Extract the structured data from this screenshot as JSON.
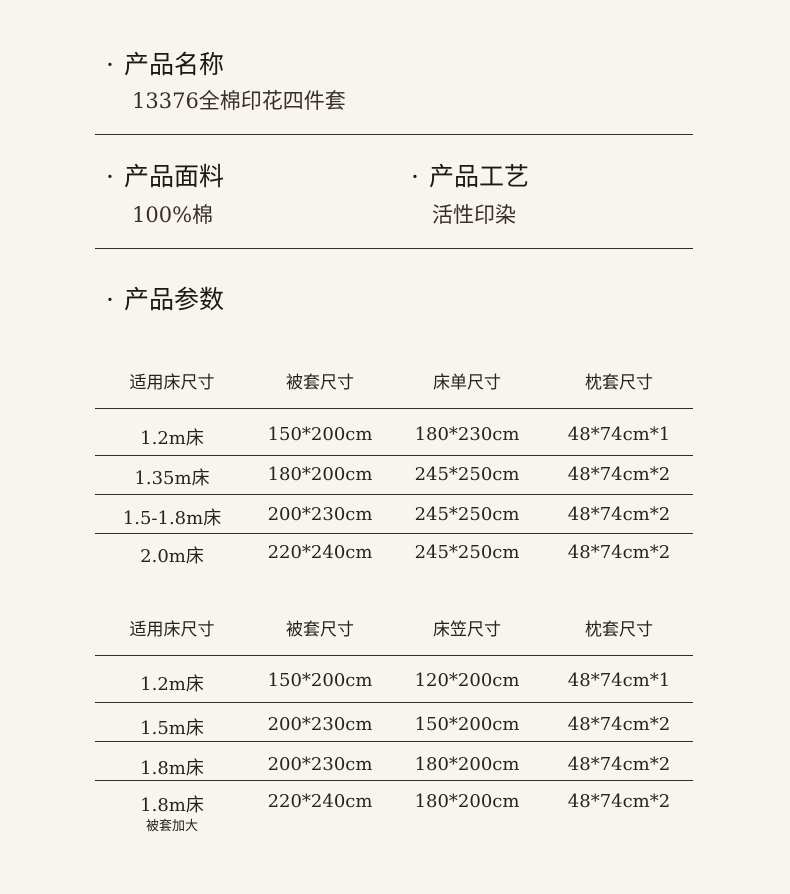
{
  "name": {
    "label": "产品名称",
    "value": "13376全棉印花四件套"
  },
  "fabric": {
    "label": "产品面料",
    "value": "100%棉"
  },
  "craft": {
    "label": "产品工艺",
    "value": "活性印染"
  },
  "params": {
    "label": "产品参数"
  },
  "bullet": "·",
  "table1": {
    "headers": [
      "适用床尺寸",
      "被套尺寸",
      "床单尺寸",
      "枕套尺寸"
    ],
    "rows": [
      [
        "1.2m床",
        "150*200cm",
        "180*230cm",
        "48*74cm*1"
      ],
      [
        "1.35m床",
        "180*200cm",
        "245*250cm",
        "48*74cm*2"
      ],
      [
        "1.5-1.8m床",
        "200*230cm",
        "245*250cm",
        "48*74cm*2"
      ],
      [
        "2.0m床",
        "220*240cm",
        "245*250cm",
        "48*74cm*2"
      ]
    ]
  },
  "table2": {
    "headers": [
      "适用床尺寸",
      "被套尺寸",
      "床笠尺寸",
      "枕套尺寸"
    ],
    "rows": [
      [
        "1.2m床",
        "150*200cm",
        "120*200cm",
        "48*74cm*1"
      ],
      [
        "1.5m床",
        "200*230cm",
        "150*200cm",
        "48*74cm*2"
      ],
      [
        "1.8m床",
        "200*230cm",
        "180*200cm",
        "48*74cm*2"
      ],
      [
        "1.8m床",
        "220*240cm",
        "180*200cm",
        "48*74cm*2"
      ]
    ],
    "last_row_note": "被套加大"
  }
}
